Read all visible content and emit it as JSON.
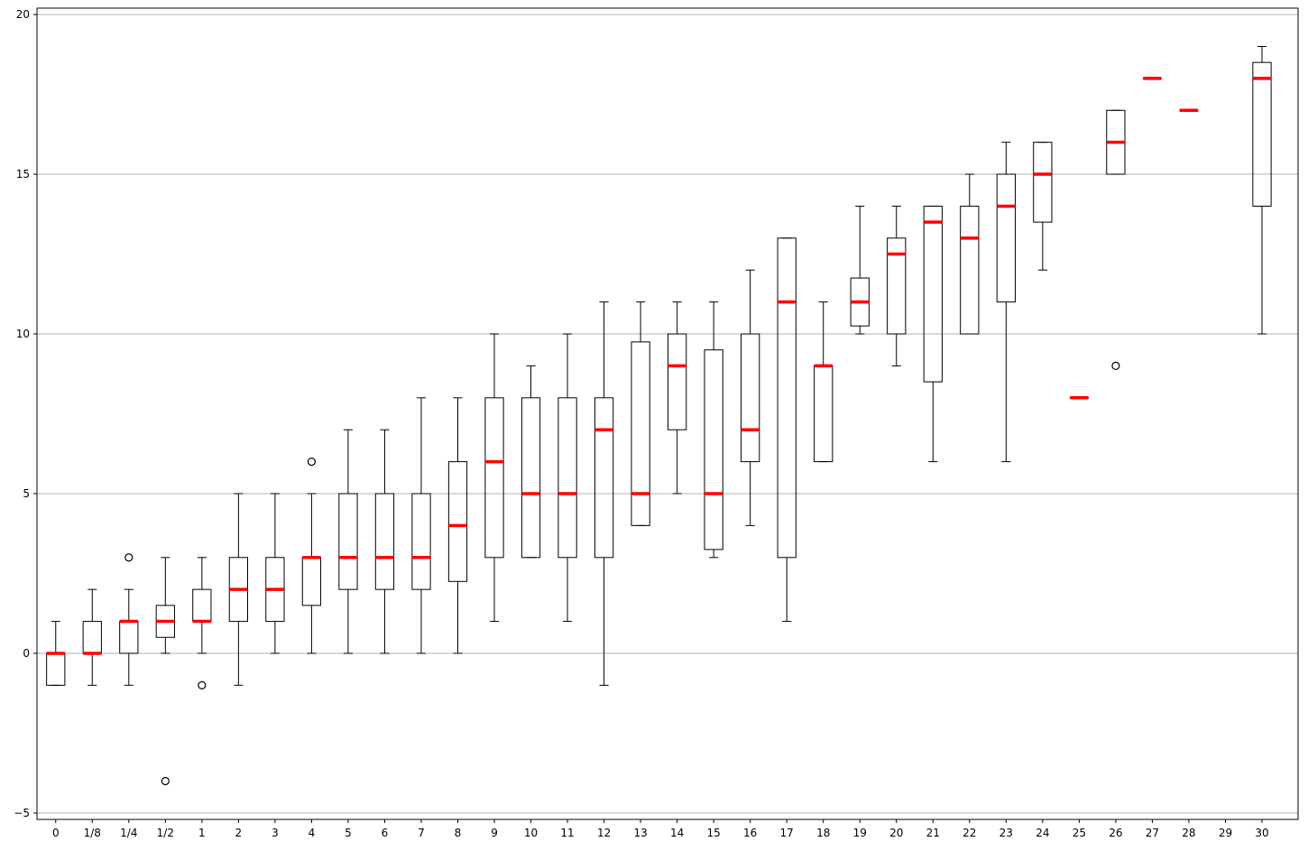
{
  "chart_data": {
    "type": "box",
    "title": "",
    "xlabel": "",
    "ylabel": "",
    "ylim": [
      -5.2,
      20.2
    ],
    "yticks": [
      -5,
      0,
      5,
      10,
      15,
      20
    ],
    "grid": "horizontal",
    "median_color": "#ff0000",
    "box_color": "#000000",
    "categories": [
      "0",
      "1/8",
      "1/4",
      "1/2",
      "1",
      "2",
      "3",
      "4",
      "5",
      "6",
      "7",
      "8",
      "9",
      "10",
      "11",
      "12",
      "13",
      "14",
      "15",
      "16",
      "17",
      "18",
      "19",
      "20",
      "21",
      "22",
      "23",
      "24",
      "25",
      "26",
      "27",
      "28",
      "29",
      "30"
    ],
    "boxes": [
      {
        "whislo": -1,
        "q1": -1,
        "med": 0,
        "q3": 0,
        "whishi": 1,
        "fliers": []
      },
      {
        "whislo": -1,
        "q1": 0,
        "med": 0,
        "q3": 1,
        "whishi": 2,
        "fliers": []
      },
      {
        "whislo": -1,
        "q1": 0,
        "med": 1,
        "q3": 1,
        "whishi": 2,
        "fliers": [
          3
        ]
      },
      {
        "whislo": 0,
        "q1": 0.5,
        "med": 1,
        "q3": 1.5,
        "whishi": 3,
        "fliers": [
          -4
        ]
      },
      {
        "whislo": 0,
        "q1": 1,
        "med": 1,
        "q3": 2,
        "whishi": 3,
        "fliers": [
          -1
        ]
      },
      {
        "whislo": -1,
        "q1": 1,
        "med": 2,
        "q3": 3,
        "whishi": 5,
        "fliers": []
      },
      {
        "whislo": 0,
        "q1": 1,
        "med": 2,
        "q3": 3,
        "whishi": 5,
        "fliers": []
      },
      {
        "whislo": 0,
        "q1": 1.5,
        "med": 3,
        "q3": 3,
        "whishi": 5,
        "fliers": [
          6
        ]
      },
      {
        "whislo": 0,
        "q1": 2,
        "med": 3,
        "q3": 5,
        "whishi": 7,
        "fliers": []
      },
      {
        "whislo": 0,
        "q1": 2,
        "med": 3,
        "q3": 5,
        "whishi": 7,
        "fliers": []
      },
      {
        "whislo": 0,
        "q1": 2,
        "med": 3,
        "q3": 5,
        "whishi": 8,
        "fliers": []
      },
      {
        "whislo": 0,
        "q1": 2.25,
        "med": 4,
        "q3": 6,
        "whishi": 8,
        "fliers": []
      },
      {
        "whislo": 1,
        "q1": 3,
        "med": 6,
        "q3": 8,
        "whishi": 10,
        "fliers": []
      },
      {
        "whislo": 3,
        "q1": 3,
        "med": 5,
        "q3": 8,
        "whishi": 9,
        "fliers": []
      },
      {
        "whislo": 1,
        "q1": 3,
        "med": 5,
        "q3": 8,
        "whishi": 10,
        "fliers": []
      },
      {
        "whislo": -1,
        "q1": 3,
        "med": 7,
        "q3": 8,
        "whishi": 11,
        "fliers": []
      },
      {
        "whislo": 4,
        "q1": 4,
        "med": 5,
        "q3": 9.75,
        "whishi": 11,
        "fliers": []
      },
      {
        "whislo": 5,
        "q1": 7,
        "med": 9,
        "q3": 10,
        "whishi": 11,
        "fliers": []
      },
      {
        "whislo": 3,
        "q1": 3.25,
        "med": 5,
        "q3": 9.5,
        "whishi": 11,
        "fliers": []
      },
      {
        "whislo": 4,
        "q1": 6,
        "med": 7,
        "q3": 10,
        "whishi": 12,
        "fliers": []
      },
      {
        "whislo": 1,
        "q1": 3,
        "med": 11,
        "q3": 13,
        "whishi": 13,
        "fliers": []
      },
      {
        "whislo": 6,
        "q1": 6,
        "med": 9,
        "q3": 9,
        "whishi": 11,
        "fliers": []
      },
      {
        "whislo": 10,
        "q1": 10.25,
        "med": 11,
        "q3": 11.75,
        "whishi": 14,
        "fliers": []
      },
      {
        "whislo": 9,
        "q1": 10,
        "med": 12.5,
        "q3": 13,
        "whishi": 14,
        "fliers": []
      },
      {
        "whislo": 6,
        "q1": 8.5,
        "med": 13.5,
        "q3": 14,
        "whishi": 14,
        "fliers": []
      },
      {
        "whislo": 10,
        "q1": 10,
        "med": 13,
        "q3": 14,
        "whishi": 15,
        "fliers": []
      },
      {
        "whislo": 6,
        "q1": 11,
        "med": 14,
        "q3": 15,
        "whishi": 16,
        "fliers": []
      },
      {
        "whislo": 12,
        "q1": 13.5,
        "med": 15,
        "q3": 16,
        "whishi": 16,
        "fliers": []
      },
      {
        "whislo": 8,
        "q1": 8,
        "med": 8,
        "q3": 8,
        "whishi": 8,
        "fliers": []
      },
      {
        "whislo": 15,
        "q1": 15,
        "med": 16,
        "q3": 17,
        "whishi": 17,
        "fliers": [
          9
        ]
      },
      {
        "whislo": 18,
        "q1": 18,
        "med": 18,
        "q3": 18,
        "whishi": 18,
        "fliers": []
      },
      {
        "whislo": 17,
        "q1": 17,
        "med": 17,
        "q3": 17,
        "whishi": 17,
        "fliers": []
      },
      null,
      {
        "whislo": 10,
        "q1": 14,
        "med": 18,
        "q3": 18.5,
        "whishi": 19,
        "fliers": []
      }
    ]
  }
}
